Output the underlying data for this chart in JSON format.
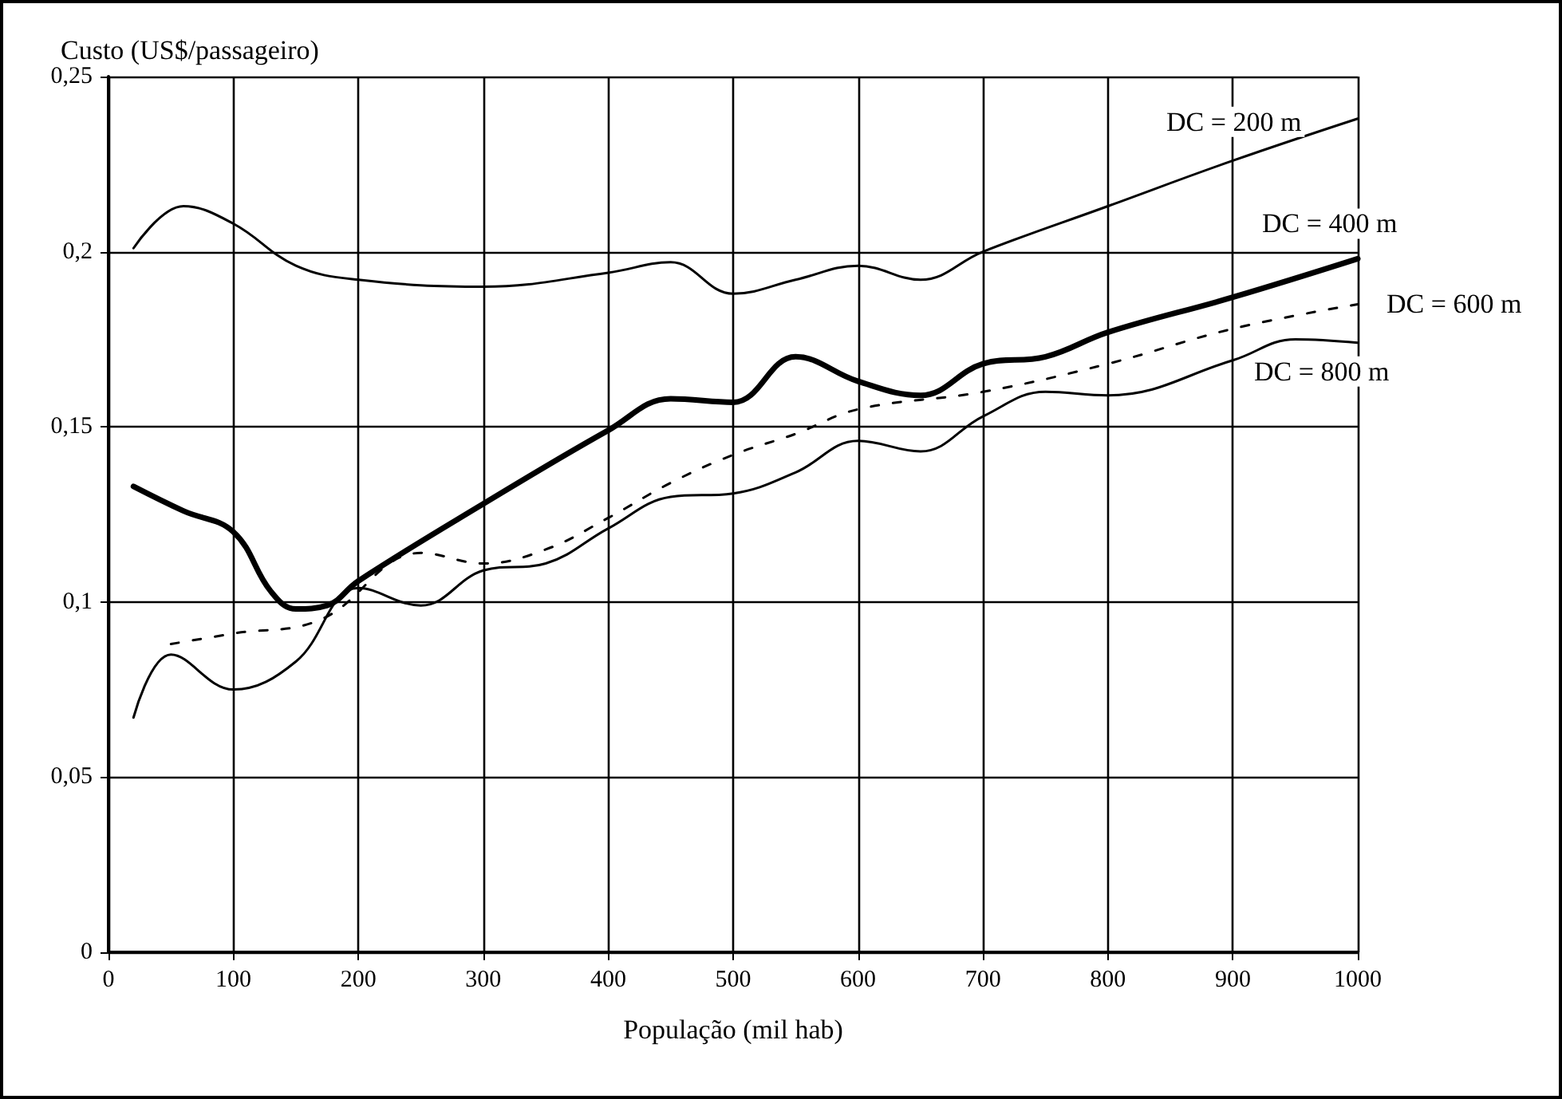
{
  "chart_data": {
    "type": "line",
    "xlabel": "População (mil hab)",
    "ylabel": "Custo (US$/passageiro)",
    "xlim": [
      0,
      1000
    ],
    "xticks": [
      0,
      100,
      200,
      300,
      400,
      500,
      600,
      700,
      800,
      900,
      1000
    ],
    "ylim": [
      0,
      0.25
    ],
    "yticks": [
      {
        "value": 0,
        "label": "0"
      },
      {
        "value": 0.05,
        "label": "0,05"
      },
      {
        "value": 0.1,
        "label": "0,1"
      },
      {
        "value": 0.15,
        "label": "0,15"
      },
      {
        "value": 0.2,
        "label": "0,2"
      },
      {
        "value": 0.25,
        "label": "0,25"
      }
    ],
    "grid": true,
    "legend": false,
    "marker": "none",
    "series": [
      {
        "name": "DC = 200 m",
        "color": "#000000",
        "line_style": "solid",
        "x": [
          20,
          60,
          100,
          150,
          200,
          300,
          400,
          450,
          500,
          550,
          600,
          650,
          700,
          800,
          900,
          1000
        ],
        "values": [
          0.201,
          0.213,
          0.208,
          0.196,
          0.192,
          0.19,
          0.194,
          0.197,
          0.188,
          0.192,
          0.196,
          0.192,
          0.2,
          0.213,
          0.226,
          0.238
        ]
      },
      {
        "name": "DC = 400 m",
        "color": "#000000",
        "line_style": "solid",
        "x": [
          20,
          60,
          100,
          130,
          150,
          175,
          200,
          300,
          400,
          450,
          500,
          550,
          600,
          650,
          700,
          750,
          800,
          900,
          1000
        ],
        "values": [
          0.133,
          0.126,
          0.12,
          0.103,
          0.098,
          0.099,
          0.106,
          0.128,
          0.149,
          0.158,
          0.157,
          0.17,
          0.163,
          0.159,
          0.168,
          0.17,
          0.177,
          0.187,
          0.198
        ]
      },
      {
        "name": "DC = 600 m",
        "color": "#000000",
        "line_style": "dashed",
        "x": [
          50,
          100,
          170,
          250,
          300,
          350,
          400,
          450,
          500,
          550,
          600,
          700,
          800,
          900,
          1000
        ],
        "values": [
          0.088,
          0.091,
          0.095,
          0.114,
          0.111,
          0.115,
          0.124,
          0.134,
          0.142,
          0.148,
          0.155,
          0.16,
          0.168,
          0.178,
          0.185
        ]
      },
      {
        "name": "DC = 800 m",
        "color": "#000000",
        "line_style": "solid",
        "x": [
          20,
          50,
          100,
          150,
          200,
          250,
          300,
          350,
          400,
          450,
          500,
          550,
          600,
          650,
          700,
          750,
          800,
          900,
          950,
          1000
        ],
        "values": [
          0.067,
          0.085,
          0.075,
          0.083,
          0.104,
          0.099,
          0.109,
          0.111,
          0.121,
          0.13,
          0.131,
          0.137,
          0.146,
          0.143,
          0.153,
          0.16,
          0.159,
          0.169,
          0.175,
          0.174
        ]
      }
    ]
  }
}
